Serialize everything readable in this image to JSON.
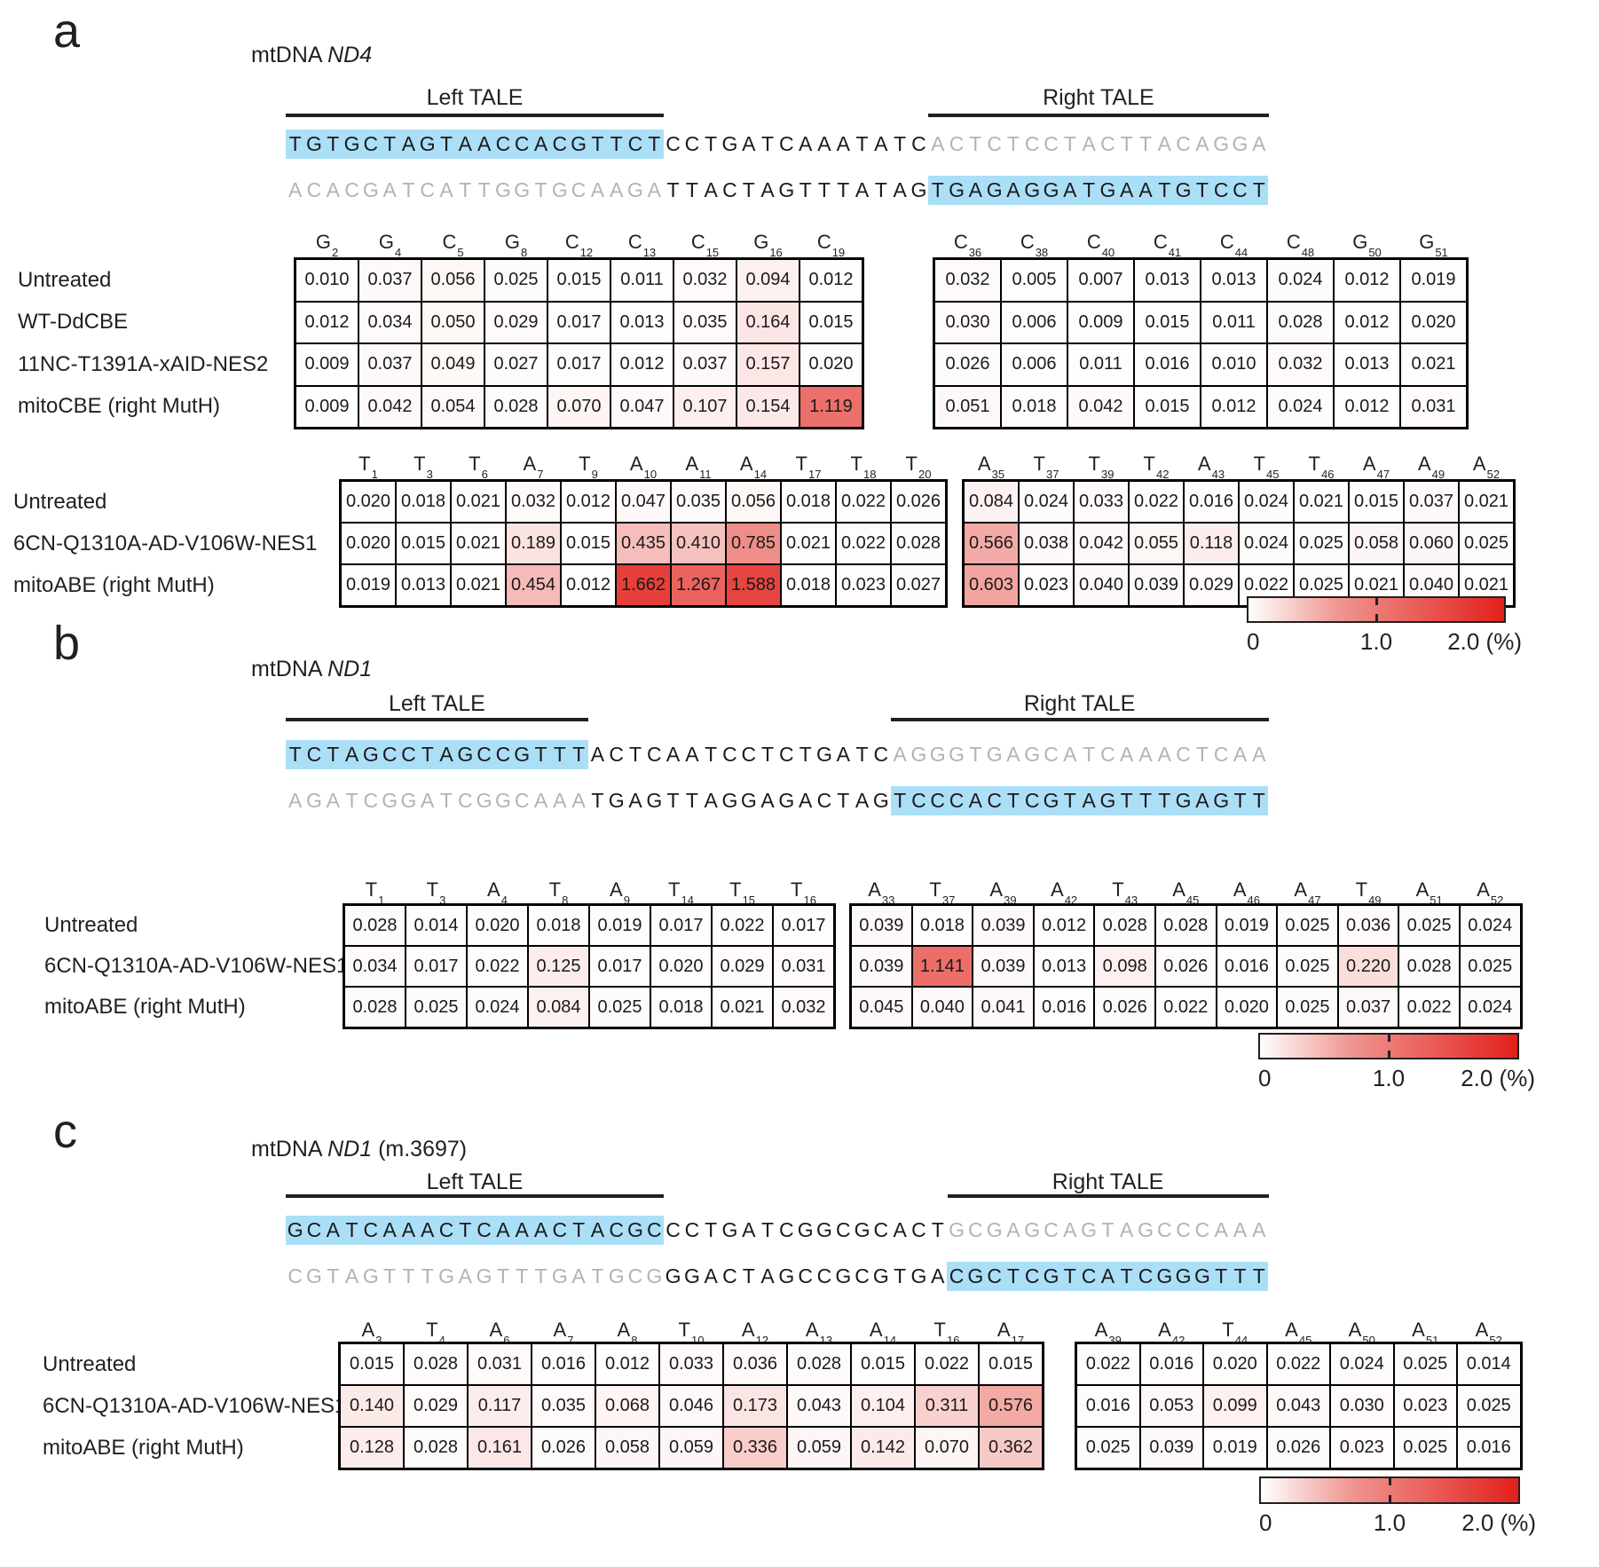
{
  "chart_data": {
    "type": "heatmap",
    "scale": {
      "min_label": "0",
      "mid_label": "1.0",
      "max_label": "2.0 (%)",
      "min": 0,
      "mid": 1.0,
      "max": 2.0,
      "unit": "%",
      "colormap": [
        "#ffffff",
        "#e2201c"
      ]
    },
    "colors": {
      "sequence_highlight": "#abdff7",
      "sequence_gray": "#b3b3b3",
      "heat_max_red": "#e2201c"
    },
    "panels": [
      {
        "letter": "a",
        "title": {
          "prefix": "mtDNA ",
          "gene": "ND4",
          "note": ""
        },
        "left_tale_label": "Left TALE",
        "right_tale_label": "Right TALE",
        "seq_top": [
          {
            "t": "TGTGCTAGTAACCACGTTCT",
            "c": "hl"
          },
          {
            "t": "CCTGATCAAATATC",
            "c": "k"
          },
          {
            "t": "ACTCTCCTACTTACAGGA",
            "c": "g"
          }
        ],
        "seq_bottom": [
          {
            "t": "ACACGATCATTGGTGCAAGA",
            "c": "g"
          },
          {
            "t": "TTACTAGTTTATAG",
            "c": "k"
          },
          {
            "t": "TGAGAGGATGAATGTCCT",
            "c": "hl"
          }
        ],
        "tables": [
          {
            "row_labels": [
              "Untreated",
              "WT-DdCBE",
              "11NC-T1391A-xAID-NES2",
              "mitoCBE (right MutH)"
            ],
            "groups": [
              {
                "headers": [
                  "G2",
                  "G4",
                  "C5",
                  "G8",
                  "C12",
                  "C13",
                  "C15",
                  "G16",
                  "C19"
                ],
                "rows": [
                  [
                    "0.010",
                    "0.037",
                    "0.056",
                    "0.025",
                    "0.015",
                    "0.011",
                    "0.032",
                    "0.094",
                    "0.012"
                  ],
                  [
                    "0.012",
                    "0.034",
                    "0.050",
                    "0.029",
                    "0.017",
                    "0.013",
                    "0.035",
                    "0.164",
                    "0.015"
                  ],
                  [
                    "0.009",
                    "0.037",
                    "0.049",
                    "0.027",
                    "0.017",
                    "0.012",
                    "0.037",
                    "0.157",
                    "0.020"
                  ],
                  [
                    "0.009",
                    "0.042",
                    "0.054",
                    "0.028",
                    "0.070",
                    "0.047",
                    "0.107",
                    "0.154",
                    "1.119"
                  ]
                ]
              },
              {
                "headers": [
                  "C36",
                  "C38",
                  "C40",
                  "C41",
                  "C44",
                  "C48",
                  "G50",
                  "G51"
                ],
                "rows": [
                  [
                    "0.032",
                    "0.005",
                    "0.007",
                    "0.013",
                    "0.013",
                    "0.024",
                    "0.012",
                    "0.019"
                  ],
                  [
                    "0.030",
                    "0.006",
                    "0.009",
                    "0.015",
                    "0.011",
                    "0.028",
                    "0.012",
                    "0.020"
                  ],
                  [
                    "0.026",
                    "0.006",
                    "0.011",
                    "0.016",
                    "0.010",
                    "0.032",
                    "0.013",
                    "0.021"
                  ],
                  [
                    "0.051",
                    "0.018",
                    "0.042",
                    "0.015",
                    "0.012",
                    "0.024",
                    "0.012",
                    "0.031"
                  ]
                ]
              }
            ]
          },
          {
            "row_labels": [
              "Untreated",
              "6CN-Q1310A-AD-V106W-NES1",
              "mitoABE (right MutH)"
            ],
            "groups": [
              {
                "headers": [
                  "T1",
                  "T3",
                  "T6",
                  "A7",
                  "T9",
                  "A10",
                  "A11",
                  "A14",
                  "T17",
                  "T18",
                  "T20"
                ],
                "rows": [
                  [
                    "0.020",
                    "0.018",
                    "0.021",
                    "0.032",
                    "0.012",
                    "0.047",
                    "0.035",
                    "0.056",
                    "0.018",
                    "0.022",
                    "0.026"
                  ],
                  [
                    "0.020",
                    "0.015",
                    "0.021",
                    "0.189",
                    "0.015",
                    "0.435",
                    "0.410",
                    "0.785",
                    "0.021",
                    "0.022",
                    "0.028"
                  ],
                  [
                    "0.019",
                    "0.013",
                    "0.021",
                    "0.454",
                    "0.012",
                    "1.662",
                    "1.267",
                    "1.588",
                    "0.018",
                    "0.023",
                    "0.027"
                  ]
                ]
              },
              {
                "headers": [
                  "A35",
                  "T37",
                  "T39",
                  "T42",
                  "A43",
                  "T45",
                  "T46",
                  "A47",
                  "A49",
                  "A52"
                ],
                "rows": [
                  [
                    "0.084",
                    "0.024",
                    "0.033",
                    "0.022",
                    "0.016",
                    "0.024",
                    "0.021",
                    "0.015",
                    "0.037",
                    "0.021"
                  ],
                  [
                    "0.566",
                    "0.038",
                    "0.042",
                    "0.055",
                    "0.118",
                    "0.024",
                    "0.025",
                    "0.058",
                    "0.060",
                    "0.025"
                  ],
                  [
                    "0.603",
                    "0.023",
                    "0.040",
                    "0.039",
                    "0.029",
                    "0.022",
                    "0.025",
                    "0.021",
                    "0.040",
                    "0.021"
                  ]
                ]
              }
            ]
          }
        ]
      },
      {
        "letter": "b",
        "title": {
          "prefix": "mtDNA ",
          "gene": "ND1",
          "note": ""
        },
        "left_tale_label": "Left TALE",
        "right_tale_label": "Right TALE",
        "seq_top": [
          {
            "t": "TCTAGCCTAGCCGTTT",
            "c": "hl"
          },
          {
            "t": "ACTCAATCCTCTGATC",
            "c": "k"
          },
          {
            "t": "AGGGTGAGCATCAAACTCAA",
            "c": "g"
          }
        ],
        "seq_bottom": [
          {
            "t": "AGATCGGATCGGCAAA",
            "c": "g"
          },
          {
            "t": "TGAGTTAGGAGACTAG",
            "c": "k"
          },
          {
            "t": "TCCCACTCGTAGTTTGAGTT",
            "c": "hl"
          }
        ],
        "tables": [
          {
            "row_labels": [
              "Untreated",
              "6CN-Q1310A-AD-V106W-NES1",
              "mitoABE (right MutH)"
            ],
            "groups": [
              {
                "headers": [
                  "T1",
                  "T3",
                  "A4",
                  "T8",
                  "A9",
                  "T14",
                  "T15",
                  "T16"
                ],
                "rows": [
                  [
                    "0.028",
                    "0.014",
                    "0.020",
                    "0.018",
                    "0.019",
                    "0.017",
                    "0.022",
                    "0.017"
                  ],
                  [
                    "0.034",
                    "0.017",
                    "0.022",
                    "0.125",
                    "0.017",
                    "0.020",
                    "0.029",
                    "0.031"
                  ],
                  [
                    "0.028",
                    "0.025",
                    "0.024",
                    "0.084",
                    "0.025",
                    "0.018",
                    "0.021",
                    "0.032"
                  ]
                ]
              },
              {
                "headers": [
                  "A33",
                  "T37",
                  "A39",
                  "A42",
                  "T43",
                  "A45",
                  "A46",
                  "A47",
                  "T49",
                  "A51",
                  "A52"
                ],
                "rows": [
                  [
                    "0.039",
                    "0.018",
                    "0.039",
                    "0.012",
                    "0.028",
                    "0.028",
                    "0.019",
                    "0.025",
                    "0.036",
                    "0.025",
                    "0.024"
                  ],
                  [
                    "0.039",
                    "1.141",
                    "0.039",
                    "0.013",
                    "0.098",
                    "0.026",
                    "0.016",
                    "0.025",
                    "0.220",
                    "0.028",
                    "0.025"
                  ],
                  [
                    "0.045",
                    "0.040",
                    "0.041",
                    "0.016",
                    "0.026",
                    "0.022",
                    "0.020",
                    "0.025",
                    "0.037",
                    "0.022",
                    "0.024"
                  ]
                ]
              }
            ]
          }
        ]
      },
      {
        "letter": "c",
        "title": {
          "prefix": "mtDNA ",
          "gene": "ND1",
          "note": " (m.3697)"
        },
        "left_tale_label": "Left TALE",
        "right_tale_label": "Right TALE",
        "seq_top": [
          {
            "t": "GCATCAAACTCAAACTACGC",
            "c": "hl"
          },
          {
            "t": "CCTGATCGGCGCACT",
            "c": "k"
          },
          {
            "t": "GCGAGCAGTAGCCCAAA",
            "c": "g"
          }
        ],
        "seq_bottom": [
          {
            "t": "CGTAGTTTGAGTTTGATGCG",
            "c": "g"
          },
          {
            "t": "GGACTAGCCGCGTGA",
            "c": "k"
          },
          {
            "t": "CGCTCGTCATCGGGTTT",
            "c": "hl"
          }
        ],
        "tables": [
          {
            "row_labels": [
              "Untreated",
              "6CN-Q1310A-AD-V106W-NES1",
              "mitoABE (right MutH)"
            ],
            "groups": [
              {
                "headers": [
                  "A3",
                  "T4",
                  "A6",
                  "A7",
                  "A8",
                  "T10",
                  "A12",
                  "A13",
                  "A14",
                  "T16",
                  "A17"
                ],
                "rows": [
                  [
                    "0.015",
                    "0.028",
                    "0.031",
                    "0.016",
                    "0.012",
                    "0.033",
                    "0.036",
                    "0.028",
                    "0.015",
                    "0.022",
                    "0.015"
                  ],
                  [
                    "0.140",
                    "0.029",
                    "0.117",
                    "0.035",
                    "0.068",
                    "0.046",
                    "0.173",
                    "0.043",
                    "0.104",
                    "0.311",
                    "0.576"
                  ],
                  [
                    "0.128",
                    "0.028",
                    "0.161",
                    "0.026",
                    "0.058",
                    "0.059",
                    "0.336",
                    "0.059",
                    "0.142",
                    "0.070",
                    "0.362"
                  ]
                ]
              },
              {
                "headers": [
                  "A39",
                  "A42",
                  "T44",
                  "A45",
                  "A50",
                  "A51",
                  "A52"
                ],
                "rows": [
                  [
                    "0.022",
                    "0.016",
                    "0.020",
                    "0.022",
                    "0.024",
                    "0.025",
                    "0.014"
                  ],
                  [
                    "0.016",
                    "0.053",
                    "0.099",
                    "0.043",
                    "0.030",
                    "0.023",
                    "0.025"
                  ],
                  [
                    "0.025",
                    "0.039",
                    "0.019",
                    "0.026",
                    "0.023",
                    "0.025",
                    "0.016"
                  ]
                ]
              }
            ]
          }
        ]
      }
    ]
  }
}
